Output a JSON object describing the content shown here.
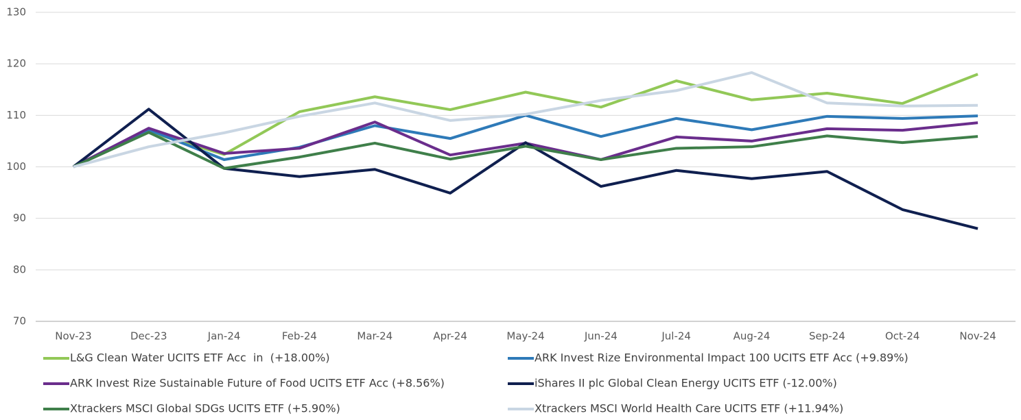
{
  "chart_data": {
    "type": "line",
    "categories": [
      "Nov-23",
      "Dec-23",
      "Jan-24",
      "Feb-24",
      "Mar-24",
      "Apr-24",
      "May-24",
      "Jun-24",
      "Jul-24",
      "Aug-24",
      "Sep-24",
      "Oct-24",
      "Nov-24"
    ],
    "ylim": [
      70,
      130
    ],
    "yticks": [
      70,
      80,
      90,
      100,
      110,
      120,
      130
    ],
    "grid": true,
    "series": [
      {
        "name": "L&G Clean Water UCITS ETF Acc  in  (+18.00%)",
        "color": "#92c857",
        "values": [
          100,
          106.8,
          102.4,
          110.7,
          113.6,
          111.1,
          114.5,
          111.6,
          116.7,
          113.0,
          114.3,
          112.3,
          118.0
        ]
      },
      {
        "name": "ARK Invest Rize Environmental Impact 100 UCITS ETF Acc (+9.89%)",
        "color": "#2e7ab8",
        "values": [
          100,
          107.2,
          101.4,
          103.8,
          108.0,
          105.5,
          110.0,
          105.9,
          109.4,
          107.2,
          109.8,
          109.4,
          109.89
        ]
      },
      {
        "name": "ARK Invest Rize Sustainable Future of Food UCITS ETF Acc (+8.56%)",
        "color": "#6a2d8c",
        "values": [
          100,
          107.5,
          102.6,
          103.6,
          108.7,
          102.3,
          104.6,
          101.4,
          105.8,
          105.0,
          107.4,
          107.1,
          108.56
        ]
      },
      {
        "name": "iShares II plc Global Clean Energy UCITS ETF (-12.00%)",
        "color": "#0f1f4f",
        "values": [
          100,
          111.2,
          99.7,
          98.1,
          99.5,
          94.9,
          104.7,
          96.2,
          99.3,
          97.7,
          99.1,
          91.7,
          88.0
        ]
      },
      {
        "name": "Xtrackers MSCI Global SDGs UCITS ETF (+5.90%)",
        "color": "#3f7f4a",
        "values": [
          100,
          106.7,
          99.7,
          101.9,
          104.6,
          101.5,
          104.0,
          101.4,
          103.6,
          103.9,
          106.0,
          104.7,
          105.9
        ]
      },
      {
        "name": "Xtrackers MSCI World Health Care UCITS ETF (+11.94%)",
        "color": "#c9d6e3",
        "values": [
          100,
          103.9,
          106.6,
          109.8,
          112.4,
          109.0,
          110.2,
          112.9,
          114.8,
          118.3,
          112.4,
          111.8,
          111.94
        ]
      }
    ]
  }
}
